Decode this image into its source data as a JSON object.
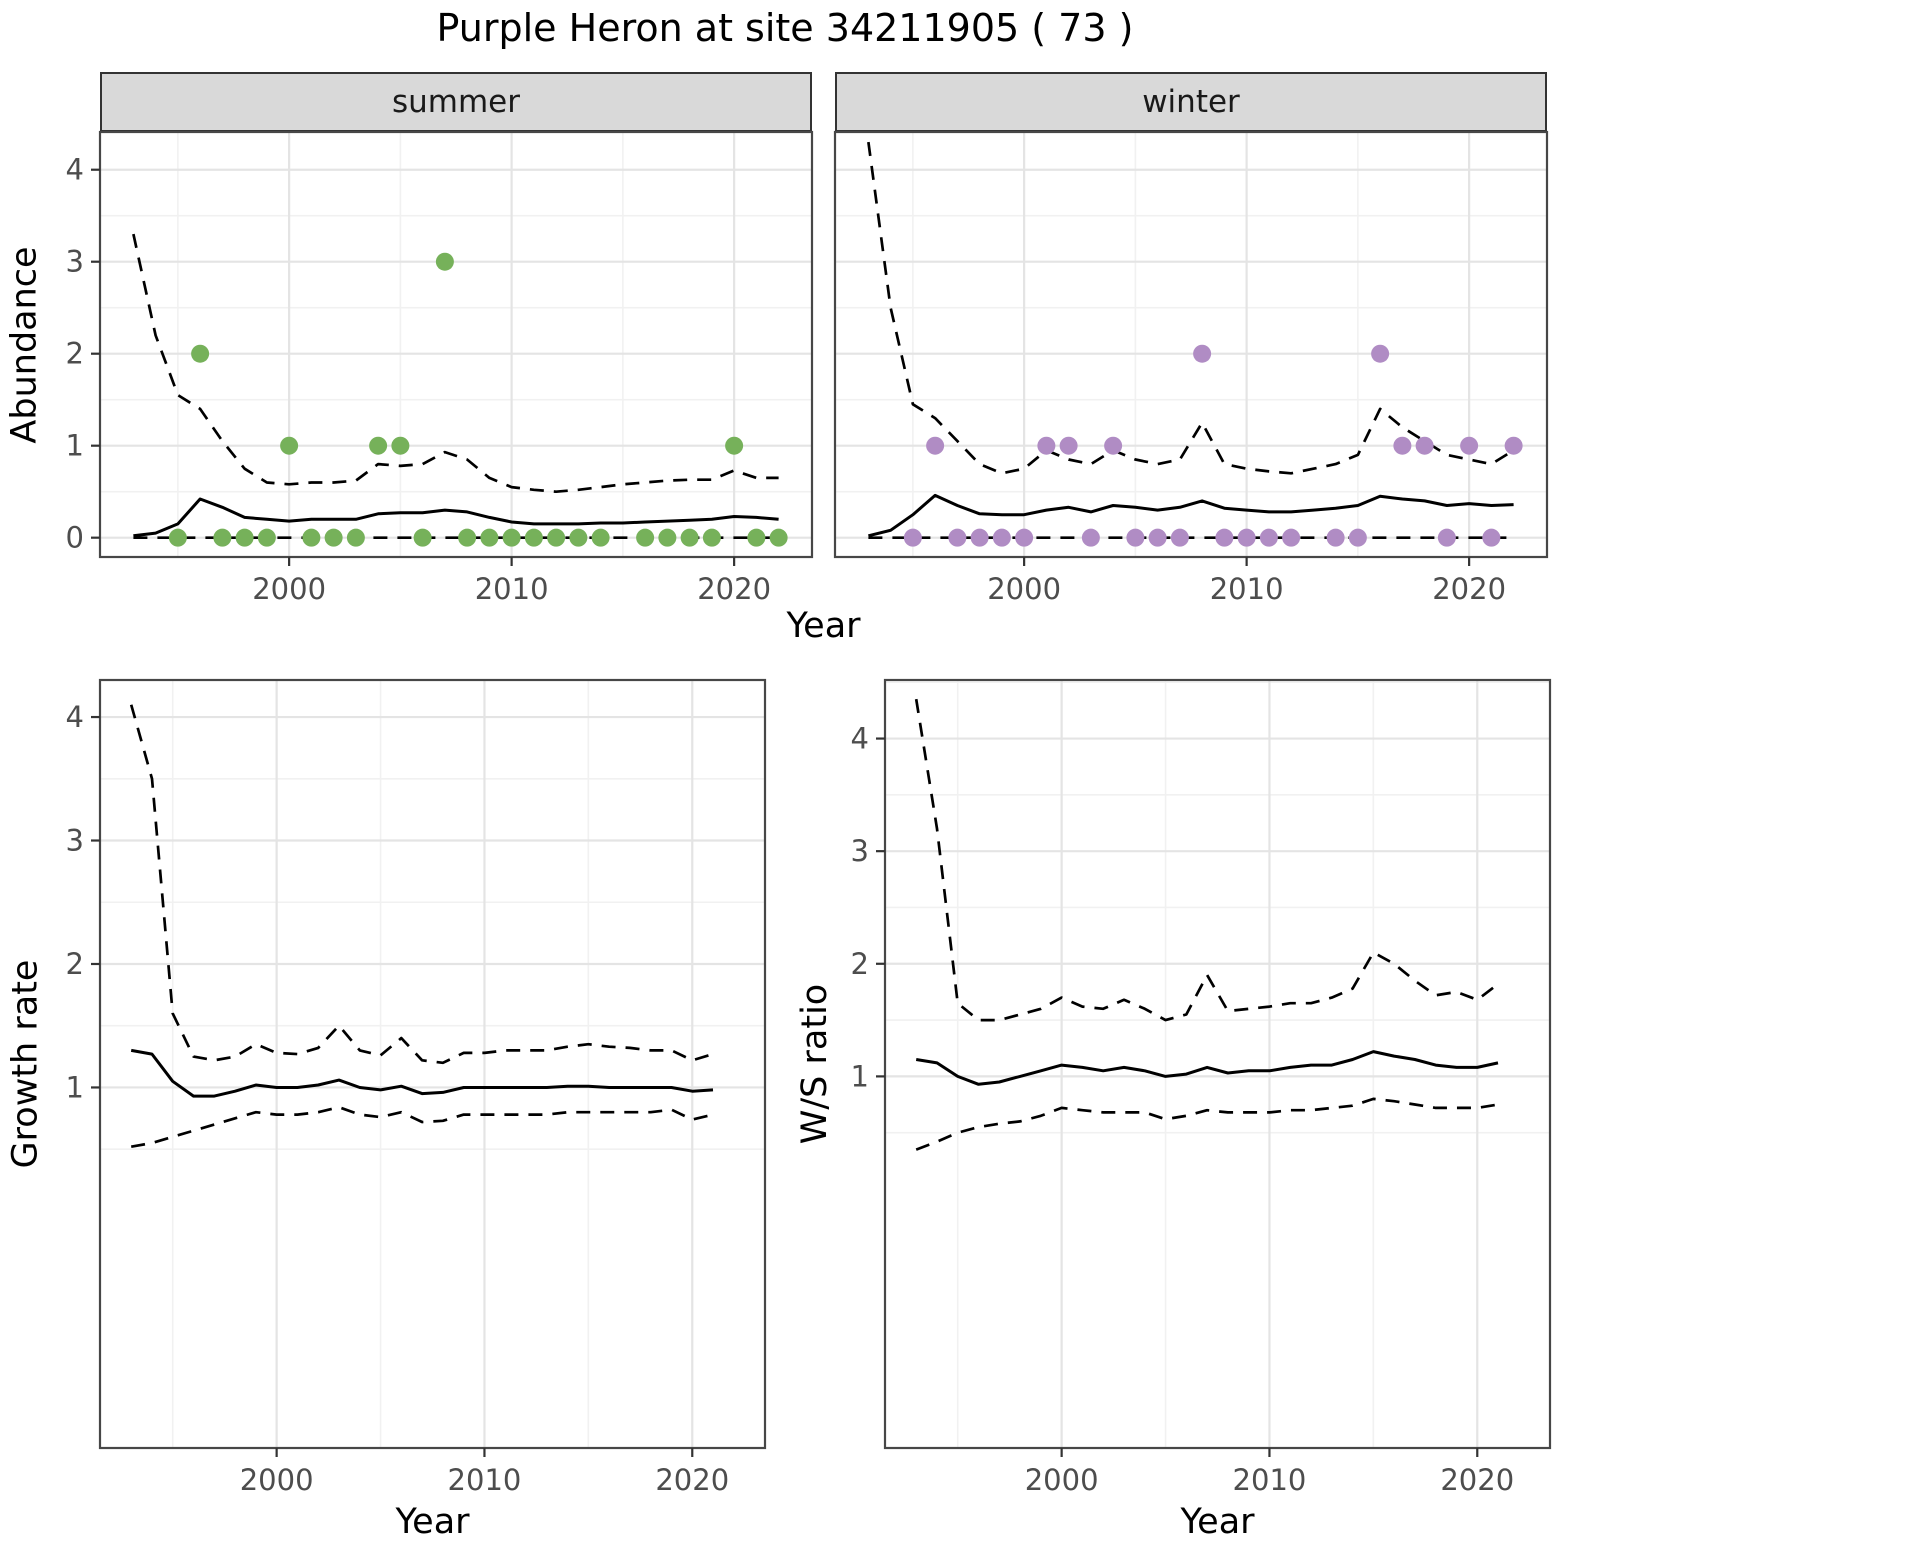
{
  "title": "Purple Heron at site 34211905 ( 73 )",
  "colors": {
    "summer_point": "#76b15a",
    "winter_point": "#b08cc4",
    "line": "#000000",
    "strip_bg": "#d9d9d9",
    "strip_border": "#333333",
    "panel_border": "#474747",
    "grid_major": "#e4e4e4",
    "grid_minor": "#f1f1f1",
    "tick_mark": "#333333",
    "tick_label": "#4d4d4d"
  },
  "chart_data": [
    {
      "type": "line",
      "facet": "summer",
      "xlabel": "Year",
      "ylabel": "Abundance",
      "xlim": [
        1991.5,
        2023.5
      ],
      "ylim": [
        -0.21,
        4.41
      ],
      "x_ticks": [
        2000,
        2010,
        2020
      ],
      "y_ticks": [
        0,
        1,
        2,
        3,
        4
      ],
      "x": [
        1993,
        1994,
        1995,
        1996,
        1997,
        1998,
        1999,
        2000,
        2001,
        2002,
        2003,
        2004,
        2005,
        2006,
        2007,
        2008,
        2009,
        2010,
        2011,
        2012,
        2013,
        2014,
        2015,
        2016,
        2017,
        2018,
        2019,
        2020,
        2021,
        2022
      ],
      "series": [
        {
          "name": "mean",
          "style": "solid",
          "y": [
            0.02,
            0.05,
            0.15,
            0.42,
            0.33,
            0.22,
            0.2,
            0.18,
            0.2,
            0.2,
            0.2,
            0.26,
            0.27,
            0.27,
            0.3,
            0.28,
            0.22,
            0.17,
            0.15,
            0.15,
            0.15,
            0.16,
            0.16,
            0.17,
            0.18,
            0.19,
            0.2,
            0.23,
            0.22,
            0.2
          ]
        },
        {
          "name": "upper_ci",
          "style": "dashed",
          "y": [
            3.3,
            2.2,
            1.55,
            1.4,
            1.05,
            0.75,
            0.6,
            0.58,
            0.6,
            0.6,
            0.62,
            0.8,
            0.78,
            0.8,
            0.93,
            0.85,
            0.65,
            0.55,
            0.52,
            0.5,
            0.52,
            0.55,
            0.58,
            0.6,
            0.62,
            0.63,
            0.63,
            0.73,
            0.65,
            0.65
          ]
        },
        {
          "name": "lower_ci",
          "style": "dashed",
          "y": [
            0,
            0,
            0,
            0,
            0,
            0,
            0,
            0,
            0,
            0,
            0,
            0,
            0,
            0,
            0,
            0,
            0,
            0,
            0,
            0,
            0,
            0,
            0,
            0,
            0,
            0,
            0,
            0,
            0,
            0
          ]
        }
      ],
      "points": {
        "name": "observed_counts",
        "color_key": "summer_point",
        "x": [
          1995,
          1996,
          1997,
          1998,
          1999,
          2000,
          2001,
          2002,
          2003,
          2004,
          2005,
          2006,
          2007,
          2008,
          2009,
          2010,
          2011,
          2012,
          2013,
          2014,
          2016,
          2017,
          2018,
          2019,
          2020,
          2021,
          2022
        ],
        "y": [
          0,
          2,
          0,
          0,
          0,
          1,
          0,
          0,
          0,
          1,
          1,
          0,
          3,
          0,
          0,
          0,
          0,
          0,
          0,
          0,
          0,
          0,
          0,
          0,
          1,
          0,
          0
        ]
      }
    },
    {
      "type": "line",
      "facet": "winter",
      "xlabel": "Year",
      "ylabel": "Abundance",
      "xlim": [
        1991.5,
        2023.5
      ],
      "ylim": [
        -0.21,
        4.41
      ],
      "x_ticks": [
        2000,
        2010,
        2020
      ],
      "y_ticks": [
        0,
        1,
        2,
        3,
        4
      ],
      "x": [
        1993,
        1994,
        1995,
        1996,
        1997,
        1998,
        1999,
        2000,
        2001,
        2002,
        2003,
        2004,
        2005,
        2006,
        2007,
        2008,
        2009,
        2010,
        2011,
        2012,
        2013,
        2014,
        2015,
        2016,
        2017,
        2018,
        2019,
        2020,
        2021,
        2022
      ],
      "series": [
        {
          "name": "mean",
          "style": "solid",
          "y": [
            0.02,
            0.08,
            0.25,
            0.46,
            0.35,
            0.26,
            0.25,
            0.25,
            0.3,
            0.33,
            0.28,
            0.35,
            0.33,
            0.3,
            0.33,
            0.4,
            0.32,
            0.3,
            0.28,
            0.28,
            0.3,
            0.32,
            0.35,
            0.45,
            0.42,
            0.4,
            0.35,
            0.37,
            0.35,
            0.36
          ]
        },
        {
          "name": "upper_ci",
          "style": "dashed",
          "y": [
            4.3,
            2.5,
            1.45,
            1.3,
            1.05,
            0.8,
            0.7,
            0.75,
            0.95,
            0.85,
            0.8,
            0.95,
            0.85,
            0.8,
            0.85,
            1.25,
            0.8,
            0.75,
            0.72,
            0.7,
            0.75,
            0.8,
            0.9,
            1.4,
            1.2,
            1.05,
            0.9,
            0.85,
            0.8,
            0.95
          ]
        },
        {
          "name": "lower_ci",
          "style": "dashed",
          "y": [
            0,
            0,
            0,
            0,
            0,
            0,
            0,
            0,
            0,
            0,
            0,
            0,
            0,
            0,
            0,
            0,
            0,
            0,
            0,
            0,
            0,
            0,
            0,
            0,
            0,
            0,
            0,
            0,
            0,
            0
          ]
        }
      ],
      "points": {
        "name": "observed_counts",
        "color_key": "winter_point",
        "x": [
          1995,
          1996,
          1997,
          1998,
          1999,
          2000,
          2001,
          2002,
          2003,
          2004,
          2005,
          2006,
          2007,
          2008,
          2009,
          2010,
          2011,
          2012,
          2014,
          2015,
          2016,
          2017,
          2018,
          2019,
          2020,
          2021,
          2022
        ],
        "y": [
          0,
          1,
          0,
          0,
          0,
          0,
          1,
          1,
          0,
          1,
          0,
          0,
          0,
          2,
          0,
          0,
          0,
          0,
          0,
          0,
          2,
          1,
          1,
          0,
          1,
          0,
          1
        ]
      }
    },
    {
      "type": "line",
      "facet": null,
      "xlabel": "Year",
      "ylabel": "Growth rate",
      "xlim": [
        1991.5,
        2023.5
      ],
      "ylim": [
        -1.92,
        4.3
      ],
      "x_ticks": [
        2000,
        2010,
        2020
      ],
      "y_ticks": [
        1,
        2,
        3,
        4
      ],
      "x": [
        1993,
        1994,
        1995,
        1996,
        1997,
        1998,
        1999,
        2000,
        2001,
        2002,
        2003,
        2004,
        2005,
        2006,
        2007,
        2008,
        2009,
        2010,
        2011,
        2012,
        2013,
        2014,
        2015,
        2016,
        2017,
        2018,
        2019,
        2020,
        2021
      ],
      "series": [
        {
          "name": "mean",
          "style": "solid",
          "y": [
            1.3,
            1.27,
            1.05,
            0.93,
            0.93,
            0.97,
            1.02,
            1.0,
            1.0,
            1.02,
            1.06,
            1.0,
            0.98,
            1.01,
            0.95,
            0.96,
            1.0,
            1.0,
            1.0,
            1.0,
            1.0,
            1.01,
            1.01,
            1.0,
            1.0,
            1.0,
            1.0,
            0.97,
            0.98
          ]
        },
        {
          "name": "upper_ci",
          "style": "dashed",
          "y": [
            4.1,
            3.5,
            1.6,
            1.25,
            1.22,
            1.25,
            1.35,
            1.28,
            1.27,
            1.32,
            1.5,
            1.3,
            1.26,
            1.4,
            1.22,
            1.2,
            1.28,
            1.28,
            1.3,
            1.3,
            1.3,
            1.33,
            1.35,
            1.33,
            1.32,
            1.3,
            1.3,
            1.22,
            1.27
          ]
        },
        {
          "name": "lower_ci",
          "style": "dashed",
          "y": [
            0.52,
            0.55,
            0.6,
            0.65,
            0.7,
            0.75,
            0.8,
            0.78,
            0.78,
            0.8,
            0.84,
            0.78,
            0.76,
            0.8,
            0.72,
            0.73,
            0.78,
            0.78,
            0.78,
            0.78,
            0.78,
            0.8,
            0.8,
            0.8,
            0.8,
            0.8,
            0.82,
            0.74,
            0.78
          ]
        }
      ]
    },
    {
      "type": "line",
      "facet": null,
      "xlabel": "Year",
      "ylabel": "W/S ratio",
      "xlim": [
        1991.5,
        2023.5
      ],
      "ylim": [
        -2.3,
        4.52
      ],
      "x_ticks": [
        2000,
        2010,
        2020
      ],
      "y_ticks": [
        1,
        2,
        3,
        4
      ],
      "x": [
        1993,
        1994,
        1995,
        1996,
        1997,
        1998,
        1999,
        2000,
        2001,
        2002,
        2003,
        2004,
        2005,
        2006,
        2007,
        2008,
        2009,
        2010,
        2011,
        2012,
        2013,
        2014,
        2015,
        2016,
        2017,
        2018,
        2019,
        2020,
        2021
      ],
      "series": [
        {
          "name": "mean",
          "style": "solid",
          "y": [
            1.15,
            1.12,
            1.0,
            0.93,
            0.95,
            1.0,
            1.05,
            1.1,
            1.08,
            1.05,
            1.08,
            1.05,
            1.0,
            1.02,
            1.08,
            1.03,
            1.05,
            1.05,
            1.08,
            1.1,
            1.1,
            1.15,
            1.22,
            1.18,
            1.15,
            1.1,
            1.08,
            1.08,
            1.12
          ]
        },
        {
          "name": "upper_ci",
          "style": "dashed",
          "y": [
            4.35,
            3.2,
            1.65,
            1.5,
            1.5,
            1.55,
            1.6,
            1.7,
            1.62,
            1.6,
            1.68,
            1.6,
            1.5,
            1.55,
            1.9,
            1.58,
            1.6,
            1.62,
            1.65,
            1.65,
            1.7,
            1.78,
            2.1,
            2.0,
            1.85,
            1.72,
            1.75,
            1.68,
            1.82
          ]
        },
        {
          "name": "lower_ci",
          "style": "dashed",
          "y": [
            0.35,
            0.42,
            0.5,
            0.55,
            0.58,
            0.6,
            0.65,
            0.72,
            0.7,
            0.68,
            0.68,
            0.68,
            0.62,
            0.65,
            0.7,
            0.68,
            0.68,
            0.68,
            0.7,
            0.7,
            0.72,
            0.74,
            0.8,
            0.78,
            0.75,
            0.72,
            0.72,
            0.72,
            0.75
          ]
        }
      ]
    }
  ]
}
